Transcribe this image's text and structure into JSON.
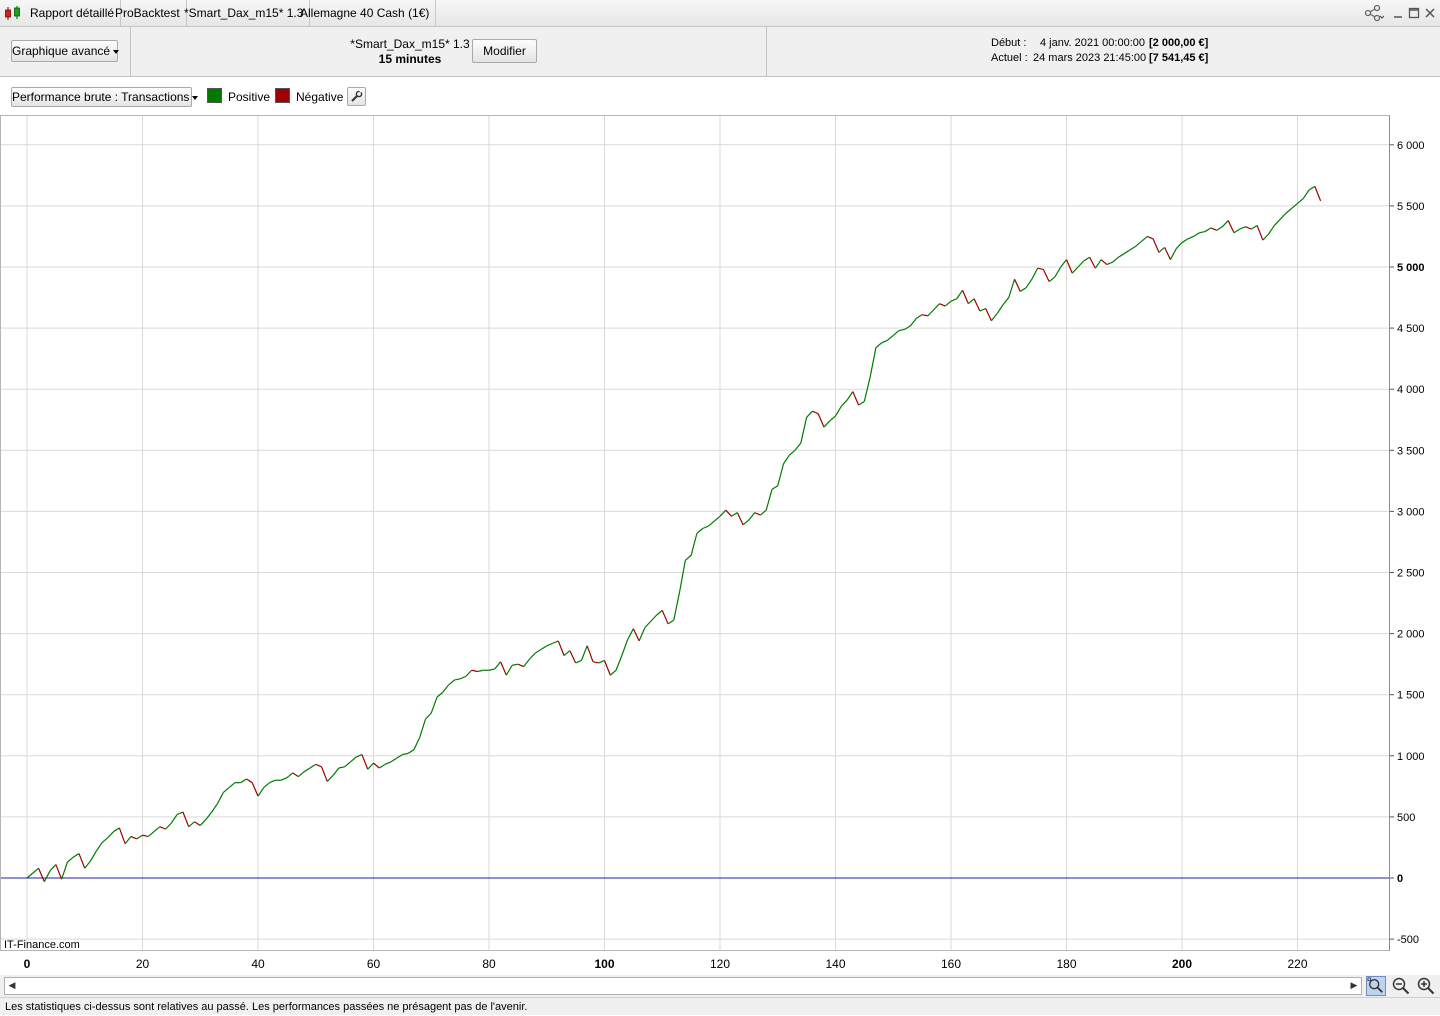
{
  "tabs": [
    {
      "label": "Rapport détaillé"
    },
    {
      "label": "ProBacktest"
    },
    {
      "label": "*Smart_Dax_m15* 1.3"
    },
    {
      "label": "Allemagne 40 Cash (1€)"
    }
  ],
  "header": {
    "chart_mode_dropdown": "Graphique avancé",
    "strategy_name": "*Smart_Dax_m15* 1.3",
    "timeframe": "15 minutes",
    "modify_button": "Modifier",
    "start_label": "Début :",
    "start_date": "4 janv. 2021 00:00:00",
    "start_value": "[2 000,00 €]",
    "current_label": "Actuel :",
    "current_date": "24 mars 2023 21:45:00",
    "current_value": "[7 541,45 €]"
  },
  "toolbar": {
    "performance_dropdown": "Performance brute : Transactions",
    "legend_positive": "Positive",
    "legend_negative": "Négative"
  },
  "colors": {
    "positive": "#007a00",
    "negative": "#a00000",
    "zero_line": "#1f1fa8",
    "grid": "#d9d9d9"
  },
  "icons": [
    "app-candles-icon",
    "share-icon",
    "minimize-icon",
    "maximize-icon",
    "close-icon",
    "wrench-icon",
    "zoom-fit-icon",
    "zoom-out-icon",
    "zoom-in-icon",
    "scroll-left-arrow-icon",
    "scroll-right-arrow-icon"
  ],
  "watermark": "IT-Finance.com",
  "status_text": "Les statistiques ci-dessus sont relatives au passé. Les performances passées ne présagent pas de l'avenir.",
  "chart_data": {
    "type": "line",
    "y_tick_labels": [
      "6 000",
      "5 500",
      "5 000",
      "4 500",
      "4 000",
      "3 500",
      "3 000",
      "2 500",
      "2 000",
      "1 500",
      "1 000",
      "500",
      "0",
      "-500"
    ],
    "y_ticks": [
      6000,
      5500,
      5000,
      4500,
      4000,
      3500,
      3000,
      2500,
      2000,
      1500,
      1000,
      500,
      0,
      -500
    ],
    "x_ticks": [
      0,
      20,
      40,
      60,
      80,
      100,
      120,
      140,
      160,
      180,
      200,
      220
    ],
    "x_tick_labels": [
      "0",
      "20",
      "40",
      "60",
      "80",
      "100",
      "120",
      "140",
      "160",
      "180",
      "200",
      "220"
    ],
    "x_bold_ticks": [
      0,
      100,
      200
    ],
    "ylim": [
      -600,
      6200
    ],
    "xlim": [
      -5,
      235
    ],
    "grid": true,
    "series": [
      {
        "values": [
          0,
          40,
          80,
          -30,
          60,
          110,
          -10,
          130,
          170,
          200,
          80,
          140,
          220,
          290,
          330,
          380,
          410,
          280,
          340,
          320,
          350,
          340,
          380,
          420,
          400,
          450,
          520,
          540,
          420,
          460,
          430,
          480,
          540,
          610,
          700,
          740,
          780,
          780,
          810,
          780,
          670,
          740,
          780,
          800,
          800,
          820,
          860,
          830,
          870,
          900,
          930,
          910,
          790,
          840,
          900,
          910,
          950,
          990,
          1010,
          890,
          940,
          900,
          930,
          950,
          980,
          1010,
          1020,
          1050,
          1150,
          1300,
          1350,
          1480,
          1520,
          1580,
          1620,
          1630,
          1650,
          1700,
          1690,
          1700,
          1700,
          1710,
          1770,
          1660,
          1740,
          1750,
          1730,
          1790,
          1840,
          1870,
          1900,
          1920,
          1940,
          1820,
          1860,
          1760,
          1780,
          1900,
          1770,
          1760,
          1780,
          1660,
          1700,
          1820,
          1950,
          2040,
          1940,
          2050,
          2100,
          2150,
          2190,
          2080,
          2110,
          2340,
          2600,
          2640,
          2820,
          2860,
          2880,
          2920,
          2960,
          3010,
          2960,
          2990,
          2890,
          2930,
          2990,
          2970,
          3010,
          3180,
          3210,
          3390,
          3460,
          3500,
          3560,
          3770,
          3820,
          3800,
          3690,
          3740,
          3780,
          3860,
          3910,
          3980,
          3870,
          3900,
          4100,
          4340,
          4380,
          4400,
          4440,
          4480,
          4490,
          4520,
          4580,
          4610,
          4600,
          4650,
          4700,
          4680,
          4720,
          4740,
          4810,
          4700,
          4740,
          4640,
          4660,
          4560,
          4620,
          4690,
          4750,
          4900,
          4800,
          4830,
          4900,
          4990,
          4980,
          4880,
          4920,
          5000,
          5060,
          4950,
          5000,
          5050,
          5080,
          4990,
          5060,
          5020,
          5040,
          5080,
          5110,
          5140,
          5170,
          5210,
          5250,
          5230,
          5120,
          5160,
          5060,
          5150,
          5200,
          5230,
          5250,
          5280,
          5290,
          5320,
          5300,
          5330,
          5380,
          5280,
          5310,
          5330,
          5310,
          5340,
          5220,
          5270,
          5340,
          5390,
          5440,
          5480,
          5520,
          5560,
          5630,
          5660,
          5541
        ]
      }
    ]
  }
}
